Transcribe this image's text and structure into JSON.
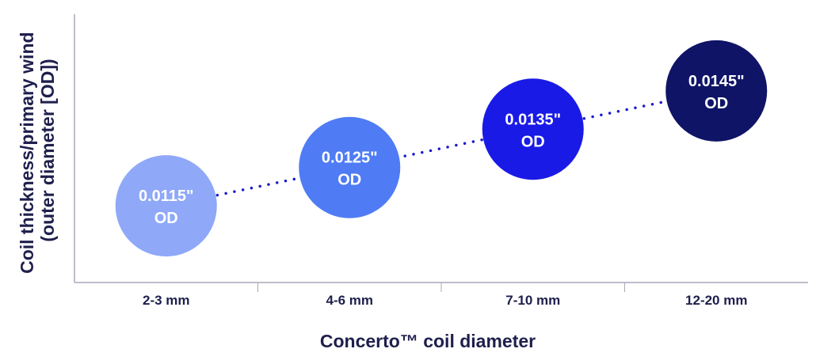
{
  "chart_data": {
    "type": "scatter",
    "categories": [
      "2-3 mm",
      "4-6 mm",
      "7-10 mm",
      "12-20 mm"
    ],
    "values": [
      0.0115,
      0.0125,
      0.0135,
      0.0145
    ],
    "point_labels": [
      [
        "0.0115\"",
        "OD"
      ],
      [
        "0.0125\"",
        "OD"
      ],
      [
        "0.0135\"",
        "OD"
      ],
      [
        "0.0145\"",
        "OD"
      ]
    ],
    "point_colors": [
      "#8fa8f8",
      "#4f7cf4",
      "#1a1ae6",
      "#0f1466"
    ],
    "connector_color": "#1a1acc",
    "xlabel": "Concerto™ coil diameter",
    "ylabel": [
      "Coil thickness/primary wind",
      "(outer diameter [OD])"
    ],
    "ylim": [
      0.0095,
      0.0165
    ],
    "grid": false,
    "axis_color": "#a8a8b8",
    "text_color": "#1f1f4d"
  }
}
